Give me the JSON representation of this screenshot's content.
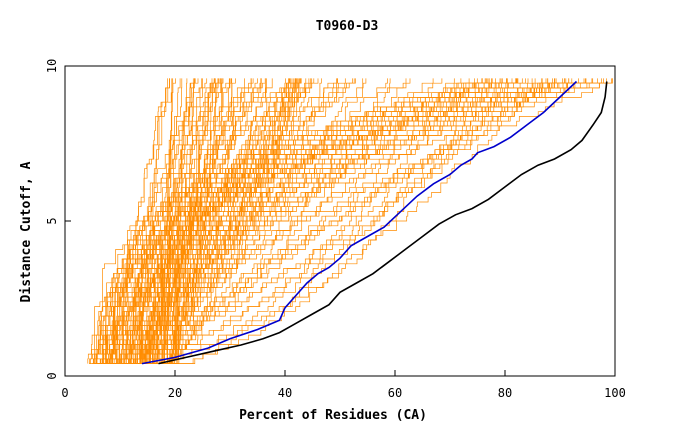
{
  "chart_data": {
    "type": "line",
    "title": "T0960-D3",
    "xlabel": "Percent of Residues (CA)",
    "ylabel": "Distance Cutoff, A",
    "xlim": [
      0,
      100
    ],
    "ylim": [
      0,
      10
    ],
    "x_ticks": [
      "0",
      "20",
      "40",
      "60",
      "80",
      "100"
    ],
    "y_ticks": [
      "0",
      "5",
      "10"
    ],
    "grid": false,
    "colors": {
      "background_models": "#ff8c00",
      "highlight_blue": "#0000cc",
      "highlight_black": "#000000",
      "axis": "#000000"
    },
    "series": [
      {
        "color": "#0000cc",
        "x": [
          14,
          20,
          26,
          30,
          35,
          39,
          40,
          42,
          44,
          46,
          48,
          50,
          52,
          55,
          58,
          61,
          64,
          67,
          70,
          72,
          74,
          75,
          78,
          81,
          84,
          87,
          90,
          93
        ],
        "y": [
          0.4,
          0.6,
          0.9,
          1.2,
          1.5,
          1.8,
          2.2,
          2.6,
          3.0,
          3.3,
          3.5,
          3.8,
          4.2,
          4.5,
          4.8,
          5.3,
          5.8,
          6.2,
          6.5,
          6.8,
          7.0,
          7.2,
          7.4,
          7.7,
          8.1,
          8.5,
          9.0,
          9.5
        ]
      },
      {
        "color": "#000000",
        "x": [
          17,
          22,
          27,
          32,
          36,
          39,
          42,
          45,
          48,
          50,
          53,
          56,
          59,
          62,
          65,
          68,
          71,
          74,
          77,
          80,
          83,
          86,
          89,
          92,
          94,
          96,
          97.5,
          98.2,
          98.5
        ],
        "y": [
          0.4,
          0.6,
          0.8,
          1.0,
          1.2,
          1.4,
          1.7,
          2.0,
          2.3,
          2.7,
          3.0,
          3.3,
          3.7,
          4.1,
          4.5,
          4.9,
          5.2,
          5.4,
          5.7,
          6.1,
          6.5,
          6.8,
          7.0,
          7.3,
          7.6,
          8.1,
          8.5,
          9.0,
          9.5
        ]
      }
    ],
    "background_model_count": 150
  }
}
